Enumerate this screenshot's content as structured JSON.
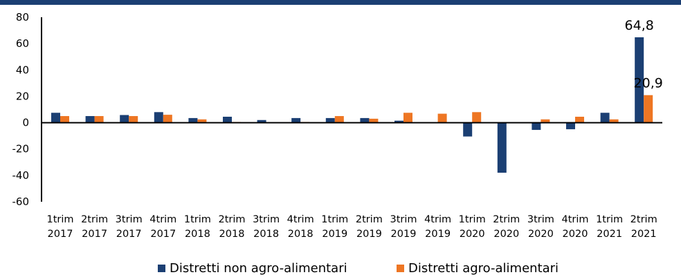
{
  "chart_data": {
    "type": "bar",
    "title": "",
    "xlabel": "",
    "ylabel": "",
    "ylim": [
      -60,
      80
    ],
    "yticks": [
      80,
      60,
      40,
      20,
      0,
      -20,
      -40,
      -60
    ],
    "categories": [
      [
        "1trim",
        "2017"
      ],
      [
        "2trim",
        "2017"
      ],
      [
        "3trim",
        "2017"
      ],
      [
        "4trim",
        "2017"
      ],
      [
        "1trim",
        "2018"
      ],
      [
        "2trim",
        "2018"
      ],
      [
        "3trim",
        "2018"
      ],
      [
        "4trim",
        "2018"
      ],
      [
        "1trim",
        "2019"
      ],
      [
        "2trim",
        "2019"
      ],
      [
        "3trim",
        "2019"
      ],
      [
        "4trim",
        "2019"
      ],
      [
        "1trim",
        "2020"
      ],
      [
        "2trim",
        "2020"
      ],
      [
        "3trim",
        "2020"
      ],
      [
        "4trim",
        "2020"
      ],
      [
        "1trim",
        "2021"
      ],
      [
        "2trim",
        "2021"
      ]
    ],
    "series": [
      {
        "name": "Distretti non agro-alimentari",
        "color": "#1b3f73",
        "values": [
          7.5,
          5.0,
          5.8,
          8.0,
          3.5,
          4.5,
          2.0,
          3.5,
          3.5,
          3.5,
          1.5,
          0.0,
          -10.5,
          -38.0,
          -5.5,
          -5.0,
          7.5,
          64.8
        ]
      },
      {
        "name": "Distretti agro-alimentari",
        "color": "#ee7623",
        "values": [
          5.0,
          5.0,
          5.0,
          6.0,
          2.5,
          0.5,
          0.0,
          0.5,
          5.0,
          3.0,
          7.5,
          6.8,
          8.0,
          0.0,
          2.5,
          4.5,
          2.5,
          20.9
        ]
      }
    ],
    "data_labels": [
      {
        "series": 0,
        "index": 17,
        "text": "64,8"
      },
      {
        "series": 1,
        "index": 17,
        "text": "20,9"
      }
    ],
    "grid": false,
    "legend": "bottom"
  }
}
